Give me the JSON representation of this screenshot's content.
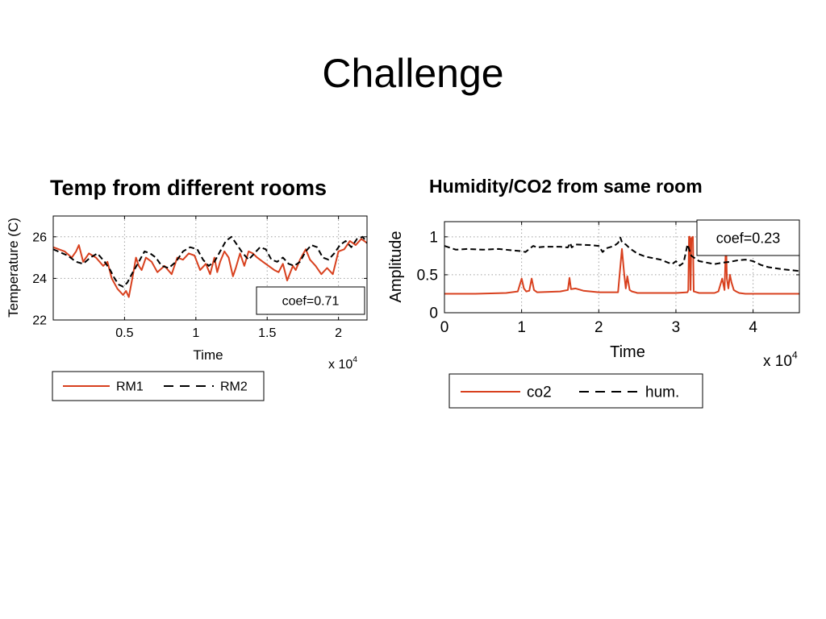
{
  "slide": {
    "title": "Challenge",
    "left_heading": "Temp from different rooms",
    "right_heading": "Humidity/CO2 from same room"
  },
  "colors": {
    "series_red": "#d8401e",
    "series_dash": "#000000",
    "grid": "#a0a0a0"
  },
  "chart_data": [
    {
      "type": "line",
      "title": "",
      "xlabel": "Time",
      "ylabel": "Temperature (C)",
      "x_multiplier": "x 10",
      "x_multiplier_exp": "4",
      "xlim": [
        0,
        22000
      ],
      "ylim": [
        22,
        27
      ],
      "xticks": [
        5000,
        10000,
        15000,
        20000
      ],
      "xtick_labels": [
        "0.5",
        "1",
        "1.5",
        "2"
      ],
      "yticks": [
        22,
        24,
        26
      ],
      "ytick_labels": [
        "22",
        "24",
        "26"
      ],
      "grid": true,
      "annotation": "coef=0.71",
      "legend": [
        "RM1",
        "RM2"
      ],
      "legend_position": "below",
      "series": [
        {
          "name": "RM1",
          "style": "solid",
          "x": [
            0,
            800,
            1300,
            1600,
            1800,
            2100,
            2500,
            3000,
            3500,
            3800,
            4100,
            4500,
            4900,
            5100,
            5300,
            5600,
            5800,
            6000,
            6200,
            6500,
            6900,
            7300,
            7800,
            8300,
            8700,
            9100,
            9500,
            9900,
            10300,
            10700,
            11000,
            11300,
            11500,
            11700,
            12000,
            12300,
            12600,
            12800,
            13100,
            13400,
            13700,
            14000,
            14300,
            14700,
            15100,
            15500,
            15800,
            16100,
            16400,
            16800,
            17000,
            17300,
            17700,
            18000,
            18400,
            18800,
            19200,
            19600,
            20000,
            20400,
            20800,
            21200,
            21600,
            22000
          ],
          "y": [
            25.5,
            25.3,
            25.0,
            25.3,
            25.6,
            24.8,
            25.2,
            25.0,
            24.6,
            24.8,
            24.0,
            23.5,
            23.2,
            23.4,
            23.1,
            24.2,
            25.0,
            24.6,
            24.4,
            25.0,
            24.8,
            24.3,
            24.6,
            24.2,
            25.0,
            24.9,
            25.2,
            25.1,
            24.4,
            24.7,
            24.2,
            25.0,
            24.3,
            24.8,
            25.3,
            25.0,
            24.1,
            24.5,
            25.2,
            24.6,
            25.3,
            25.2,
            25.0,
            24.8,
            24.6,
            24.4,
            24.3,
            24.7,
            23.9,
            24.6,
            24.4,
            24.9,
            25.4,
            24.9,
            24.6,
            24.2,
            24.5,
            24.2,
            25.3,
            25.4,
            25.8,
            25.6,
            25.9,
            25.7
          ]
        },
        {
          "name": "RM2",
          "style": "dashed",
          "x": [
            0,
            1000,
            1600,
            2100,
            2600,
            3100,
            3600,
            4000,
            4300,
            4600,
            4900,
            5200,
            5500,
            6000,
            6400,
            6800,
            7200,
            7600,
            8100,
            8600,
            9100,
            9600,
            10100,
            10500,
            10900,
            11300,
            11700,
            12100,
            12500,
            12900,
            13300,
            13700,
            14100,
            14500,
            14900,
            15300,
            15700,
            16100,
            16500,
            16900,
            17300,
            17700,
            18100,
            18500,
            18900,
            19300,
            19700,
            20100,
            20500,
            20900,
            21300,
            21700,
            22000
          ],
          "y": [
            25.4,
            25.1,
            24.8,
            24.7,
            25.0,
            25.2,
            24.8,
            24.4,
            24.0,
            23.7,
            23.6,
            23.8,
            24.2,
            24.8,
            25.3,
            25.2,
            25.0,
            24.6,
            24.5,
            24.8,
            25.3,
            25.5,
            25.4,
            24.9,
            24.6,
            24.8,
            25.3,
            25.8,
            26.0,
            25.6,
            25.2,
            24.9,
            25.2,
            25.5,
            25.4,
            24.9,
            24.8,
            25.0,
            24.7,
            24.6,
            24.8,
            25.3,
            25.6,
            25.5,
            25.0,
            24.9,
            25.2,
            25.6,
            25.8,
            25.5,
            25.9,
            26.0,
            25.7
          ]
        }
      ]
    },
    {
      "type": "line",
      "title": "",
      "xlabel": "Time",
      "ylabel": "Amplitude",
      "x_multiplier": "x 10",
      "x_multiplier_exp": "4",
      "xlim": [
        0,
        46000
      ],
      "ylim": [
        0,
        1.2
      ],
      "xticks": [
        0,
        10000,
        20000,
        30000,
        40000
      ],
      "xtick_labels": [
        "0",
        "1",
        "2",
        "3",
        "4"
      ],
      "yticks": [
        0,
        0.5,
        1
      ],
      "ytick_labels": [
        "0",
        "0.5",
        "1"
      ],
      "grid": true,
      "annotation": "coef=0.23",
      "legend": [
        "co2",
        "hum."
      ],
      "legend_position": "below",
      "series": [
        {
          "name": "co2",
          "style": "solid",
          "x": [
            0,
            4000,
            8000,
            9500,
            10000,
            10300,
            10600,
            11000,
            11300,
            11600,
            12000,
            15000,
            16000,
            16200,
            16400,
            17000,
            18000,
            20000,
            22500,
            23000,
            23300,
            23500,
            23700,
            24000,
            24300,
            24700,
            25000,
            26000,
            30000,
            31500,
            31600,
            31700,
            31800,
            31900,
            32000,
            32200,
            32300,
            33000,
            35000,
            35500,
            36000,
            36300,
            36500,
            36600,
            36800,
            37000,
            37200,
            37500,
            37800,
            38200,
            39000,
            42000,
            44000,
            46000
          ],
          "y": [
            0.25,
            0.25,
            0.26,
            0.28,
            0.45,
            0.32,
            0.28,
            0.29,
            0.45,
            0.3,
            0.27,
            0.28,
            0.3,
            0.46,
            0.31,
            0.32,
            0.29,
            0.27,
            0.27,
            0.84,
            0.5,
            0.32,
            0.48,
            0.3,
            0.28,
            0.27,
            0.26,
            0.26,
            0.26,
            0.27,
            0.3,
            1.0,
            1.0,
            0.3,
            0.98,
            1.0,
            0.28,
            0.26,
            0.26,
            0.28,
            0.45,
            0.3,
            0.97,
            0.45,
            0.32,
            0.5,
            0.4,
            0.3,
            0.28,
            0.26,
            0.25,
            0.25,
            0.25,
            0.25
          ]
        },
        {
          "name": "hum.",
          "style": "dashed",
          "x": [
            0,
            1500,
            3000,
            5000,
            7000,
            9000,
            10000,
            10500,
            11000,
            11500,
            12000,
            13000,
            15000,
            16000,
            16300,
            16500,
            17000,
            19000,
            20000,
            20500,
            21000,
            22000,
            22500,
            22800,
            23000,
            23500,
            24000,
            25000,
            26000,
            27000,
            28000,
            29000,
            29500,
            30000,
            30500,
            31000,
            31500,
            32000,
            33000,
            35000,
            36000,
            37000,
            38000,
            39000,
            40000,
            41000,
            42000,
            44000,
            46000
          ],
          "y": [
            0.88,
            0.83,
            0.84,
            0.83,
            0.84,
            0.82,
            0.81,
            0.8,
            0.84,
            0.88,
            0.86,
            0.87,
            0.87,
            0.86,
            0.92,
            0.86,
            0.9,
            0.89,
            0.88,
            0.8,
            0.85,
            0.88,
            0.92,
            0.99,
            0.93,
            0.9,
            0.85,
            0.78,
            0.74,
            0.72,
            0.7,
            0.66,
            0.64,
            0.68,
            0.62,
            0.66,
            0.9,
            0.75,
            0.68,
            0.64,
            0.66,
            0.67,
            0.69,
            0.7,
            0.68,
            0.63,
            0.6,
            0.57,
            0.55
          ]
        }
      ]
    }
  ]
}
